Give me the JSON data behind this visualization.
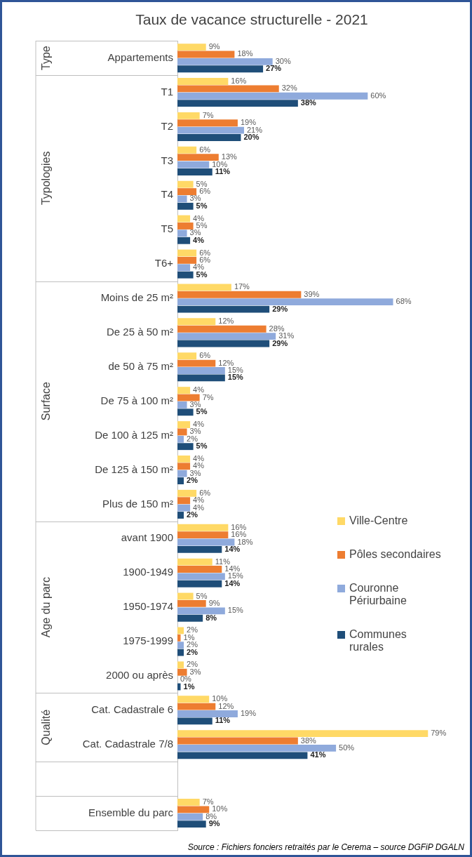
{
  "chart_data": {
    "type": "bar",
    "orientation": "horizontal",
    "title": "Taux de vacance structurelle - 2021",
    "categories": [
      "Appartements",
      "T1",
      "T2",
      "T3",
      "T4",
      "T5",
      "T6+",
      "Moins de 25 m²",
      "De 25 à 50 m²",
      "de 50 à 75 m²",
      "De 75 à 100 m²",
      "De 100 à 125 m²",
      "De 125 à 150 m²",
      "Plus de 150 m²",
      "avant 1900",
      "1900-1949",
      "1950-1974",
      "1975-1999",
      "2000 ou après",
      "Cat. Cadastrale 6",
      "Cat. Cadastrale 7/8",
      null,
      "Ensemble du parc"
    ],
    "series": [
      {
        "name": "Ville-Centre",
        "color": "#ffd966",
        "values": [
          9,
          16,
          7,
          6,
          5,
          4,
          6,
          17,
          12,
          6,
          4,
          4,
          4,
          6,
          16,
          11,
          5,
          2,
          2,
          10,
          79,
          null,
          7
        ],
        "value_labels": [
          "9%",
          "16%",
          "7%",
          "6%",
          "5%",
          "4%",
          "6%",
          "17%",
          "12%",
          "6%",
          "4%",
          "4%",
          "4%",
          "6%",
          "16%",
          "11%",
          "5%",
          "2%",
          "2%",
          "10%",
          "79%",
          null,
          "7%"
        ]
      },
      {
        "name": "Pôles secondaires",
        "color": "#ed7d31",
        "values": [
          18,
          32,
          19,
          13,
          6,
          5,
          6,
          39,
          28,
          12,
          7,
          3,
          4,
          4,
          16,
          14,
          9,
          1,
          3,
          12,
          38,
          null,
          10
        ],
        "value_labels": [
          "18%",
          "32%",
          "19%",
          "13%",
          "6%",
          "5%",
          "6%",
          "39%",
          "28%",
          "12%",
          "7%",
          "3%",
          "4%",
          "4%",
          "16%",
          "14%",
          "9%",
          "1%",
          "3%",
          "12%",
          "38%",
          null,
          "10%"
        ]
      },
      {
        "name": "Couronne Périurbaine",
        "color": "#8faadc",
        "values": [
          30,
          60,
          21,
          10,
          3,
          3,
          4,
          68,
          31,
          15,
          3,
          2,
          3,
          4,
          18,
          15,
          15,
          2,
          0,
          19,
          50,
          null,
          8
        ],
        "value_labels": [
          "30%",
          "60%",
          "21%",
          "10%",
          "3%",
          "3%",
          "4%",
          "68%",
          "31%",
          "15%",
          "3%",
          "2%",
          "3%",
          "4%",
          "18%",
          "15%",
          "15%",
          "2%",
          "0%",
          "19%",
          "50%",
          null,
          "8%"
        ]
      },
      {
        "name": "Communes rurales",
        "color": "#1f4e79",
        "values": [
          27,
          38,
          20,
          11,
          5,
          4,
          5,
          29,
          29,
          15,
          5,
          5,
          2,
          2,
          14,
          14,
          8,
          2,
          1,
          11,
          41,
          null,
          9
        ],
        "value_labels": [
          "27%",
          "38%",
          "20%",
          "11%",
          "5%",
          "4%",
          "5%",
          "29%",
          "29%",
          "15%",
          "5%",
          "5%",
          "2%",
          "2%",
          "14%",
          "14%",
          "8%",
          "2%",
          "1%",
          "11%",
          "41%",
          null,
          "9%"
        ]
      }
    ],
    "annotations": [
      "Type",
      "Typologies",
      "Surface",
      "Age du parc",
      "Qualité",
      "Source : Fichiers fonciers retraités par le Cerema – source DGFiP DGALN"
    ],
    "legend": "right"
  }
}
